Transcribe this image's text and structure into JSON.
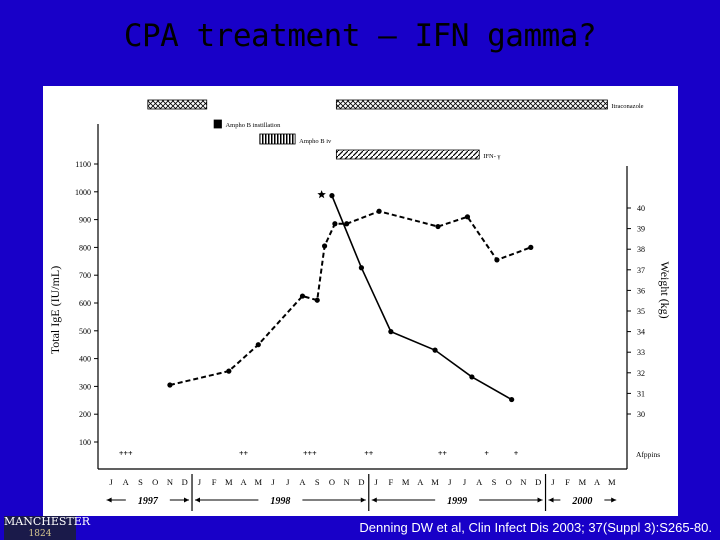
{
  "slide": {
    "title": "CPA treatment – IFN gamma?",
    "citation": "Denning DW et al, Clin Infect Dis 2003; 37(Suppl 3):S265-80.",
    "logo_line1": "MANCHESTER",
    "logo_line2": "1824"
  },
  "colors": {
    "background": "#1800c8",
    "figure": "#ffffff",
    "ink": "#000000",
    "citation": "#ffffff"
  },
  "chart_data": {
    "type": "line",
    "ylabel_left": "Total IgE (IU/mL)",
    "ylabel_right": "Weight (kg)",
    "yleft_ticks": [
      100,
      200,
      300,
      400,
      500,
      600,
      700,
      800,
      900,
      1000,
      1100
    ],
    "yleft_range": [
      100,
      1100
    ],
    "yright_ticks": [
      30,
      31,
      32,
      33,
      34,
      35,
      36,
      37,
      38,
      39,
      40
    ],
    "yright_range": [
      30,
      40
    ],
    "month_labels": [
      "J",
      "A",
      "S",
      "O",
      "N",
      "D",
      "J",
      "F",
      "M",
      "A",
      "M",
      "J",
      "J",
      "A",
      "S",
      "O",
      "N",
      "D",
      "J",
      "F",
      "M",
      "A",
      "M",
      "J",
      "J",
      "A",
      "S",
      "O",
      "N",
      "D",
      "J",
      "F",
      "M",
      "A",
      "M"
    ],
    "years": [
      {
        "label": "1997",
        "from": 0,
        "to": 5
      },
      {
        "label": "1998",
        "from": 6,
        "to": 17
      },
      {
        "label": "1999",
        "from": 18,
        "to": 29
      },
      {
        "label": "2000",
        "from": 30,
        "to": 34
      }
    ],
    "series": [
      {
        "axis": "left",
        "style": "dashed",
        "points": [
          [
            4,
            305
          ],
          [
            8,
            355
          ],
          [
            10,
            450
          ],
          [
            13,
            625
          ],
          [
            14,
            610
          ],
          [
            14.5,
            805
          ],
          [
            15.2,
            885
          ],
          [
            16,
            885
          ],
          [
            18.2,
            930
          ],
          [
            22.2,
            875
          ],
          [
            24.2,
            910
          ],
          [
            26.2,
            755
          ],
          [
            28.5,
            800
          ]
        ]
      },
      {
        "axis": "right",
        "style": "solid",
        "points": [
          [
            15,
            40.6
          ],
          [
            17,
            37.1
          ],
          [
            19,
            34
          ],
          [
            22,
            33.1
          ],
          [
            24.5,
            31.8
          ],
          [
            27.2,
            30.7
          ]
        ]
      }
    ],
    "star_marker": {
      "x": 14.3,
      "left_value": 990
    },
    "treatments": [
      {
        "label": "Itraconazole",
        "style": "crosshatch",
        "segments": [
          [
            2.5,
            6.5
          ],
          [
            15.3,
            33.7
          ]
        ]
      },
      {
        "label": "Ampho B instillation",
        "style": "solid",
        "segments": [
          [
            7,
            7.5
          ]
        ]
      },
      {
        "label": "Ampho B iv",
        "style": "vertical",
        "segments": [
          [
            10.1,
            12.5
          ]
        ]
      },
      {
        "label": "IFN- γ",
        "style": "hatch",
        "segments": [
          [
            15.3,
            25
          ]
        ]
      }
    ],
    "afppins": {
      "label": "Afppins",
      "marks": [
        {
          "x": 1,
          "text": "+++"
        },
        {
          "x": 9,
          "text": "++"
        },
        {
          "x": 13.5,
          "text": "+++"
        },
        {
          "x": 17.5,
          "text": "++"
        },
        {
          "x": 22.5,
          "text": "++"
        },
        {
          "x": 25.5,
          "text": "+"
        },
        {
          "x": 27.5,
          "text": "+"
        }
      ]
    }
  }
}
